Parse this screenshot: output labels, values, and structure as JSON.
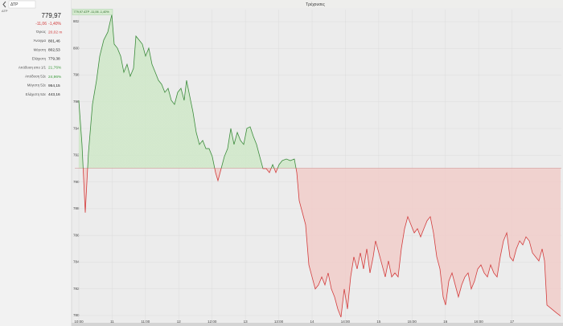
{
  "sidebar": {
    "query": "ΔΤΡ",
    "symbol": "ΔΤΡ",
    "price": "779,97",
    "change": "-11,06",
    "change_pct": "-1,40%",
    "stats": [
      {
        "label": "Όγκος",
        "value": "20,02 m",
        "color": "#d23c3c"
      },
      {
        "label": "Άνοιγμα",
        "value": "801,46"
      },
      {
        "label": "Μέγιστη",
        "value": "802,53"
      },
      {
        "label": "Ελάχιστη",
        "value": "779,38"
      },
      {
        "label": "Απόδοση απο 1/1",
        "value": "21,76%",
        "color": "#3a9a3a"
      },
      {
        "label": "Απόδοση 52ε",
        "value": "24,96%",
        "color": "#3a9a3a"
      },
      {
        "label": "Μέγιστη 52ε",
        "value": "954,15"
      },
      {
        "label": "Ελάχιστη 52ε",
        "value": "443,16"
      }
    ]
  },
  "chart_data": {
    "type": "line",
    "title": "Τρέχουσες",
    "legend_label": "779,97 ΔΤΡ -11,06 -1,40%",
    "reference": 791.03,
    "color_up": "#3c8c3c",
    "color_down": "#d23c3c",
    "fill_up": "#cfe8c8",
    "fill_down": "#f1cdca",
    "grid": true,
    "x": [
      10.0,
      10.048,
      10.097,
      10.145,
      10.205,
      10.266,
      10.314,
      10.374,
      10.435,
      10.495,
      10.531,
      10.579,
      10.628,
      10.676,
      10.724,
      10.772,
      10.821,
      10.857,
      10.905,
      10.953,
      11.002,
      11.05,
      11.098,
      11.147,
      11.195,
      11.243,
      11.291,
      11.34,
      11.388,
      11.436,
      11.484,
      11.533,
      11.581,
      11.617,
      11.665,
      11.714,
      11.762,
      11.81,
      11.859,
      11.907,
      11.955,
      12.003,
      12.052,
      12.088,
      12.136,
      12.184,
      12.233,
      12.281,
      12.329,
      12.378,
      12.426,
      12.474,
      12.522,
      12.571,
      12.619,
      12.667,
      12.715,
      12.764,
      12.812,
      12.86,
      12.909,
      12.957,
      13.005,
      13.053,
      13.114,
      13.174,
      13.234,
      13.271,
      13.307,
      13.355,
      13.403,
      13.452,
      13.5,
      13.548,
      13.596,
      13.645,
      13.693,
      13.741,
      13.79,
      13.838,
      13.886,
      13.934,
      13.983,
      14.031,
      14.079,
      14.127,
      14.176,
      14.224,
      14.272,
      14.321,
      14.369,
      14.417,
      14.453,
      14.502,
      14.55,
      14.598,
      14.646,
      14.695,
      14.743,
      14.791,
      14.839,
      14.888,
      14.936,
      14.984,
      15.033,
      15.081,
      15.129,
      15.177,
      15.226,
      15.274,
      15.322,
      15.371,
      15.419,
      15.467,
      15.503,
      15.552,
      15.6,
      15.648,
      15.696,
      15.745,
      15.793,
      15.841,
      15.889,
      15.938,
      15.986,
      16.034,
      16.083,
      16.131,
      16.179,
      16.227,
      16.276,
      16.324,
      16.372,
      16.421,
      16.469,
      16.517,
      16.565,
      16.614,
      16.662,
      16.71,
      16.759,
      16.807,
      16.855,
      16.903,
      16.952,
      16.988,
      17.024,
      17.096,
      17.169,
      17.229
    ],
    "values": [
      796.11,
      792.81,
      787.7,
      792.2,
      795.81,
      797.61,
      799.42,
      800.62,
      801.22,
      802.53,
      800.32,
      800.02,
      799.42,
      798.21,
      798.81,
      797.91,
      798.51,
      800.92,
      800.62,
      800.32,
      799.42,
      800.02,
      798.81,
      798.21,
      797.61,
      797.31,
      796.71,
      797.01,
      796.11,
      795.81,
      796.71,
      797.01,
      796.11,
      797.61,
      796.41,
      795.21,
      793.71,
      792.81,
      793.11,
      792.5,
      792.5,
      791.9,
      790.7,
      790.1,
      791.0,
      791.9,
      792.5,
      794.01,
      792.81,
      793.71,
      793.11,
      792.81,
      794.01,
      794.13,
      793.41,
      792.81,
      791.9,
      791.0,
      791.0,
      790.7,
      791.3,
      790.7,
      791.3,
      791.6,
      791.72,
      791.6,
      791.72,
      790.7,
      788.6,
      787.7,
      786.8,
      783.79,
      782.89,
      781.99,
      782.29,
      782.89,
      782.29,
      783.19,
      781.99,
      781.39,
      780.49,
      779.88,
      781.99,
      780.49,
      782.89,
      784.39,
      783.49,
      784.69,
      783.49,
      784.99,
      783.19,
      784.39,
      785.59,
      784.69,
      783.79,
      782.89,
      784.09,
      782.89,
      783.19,
      782.89,
      784.99,
      786.5,
      787.4,
      786.8,
      786.19,
      786.5,
      785.89,
      786.5,
      787.1,
      787.4,
      786.19,
      784.39,
      783.49,
      781.39,
      780.79,
      782.59,
      783.19,
      782.29,
      781.39,
      782.29,
      782.89,
      783.19,
      781.99,
      782.59,
      783.49,
      783.79,
      783.19,
      782.89,
      783.79,
      783.19,
      782.89,
      784.39,
      785.59,
      786.19,
      784.39,
      784.09,
      784.99,
      785.59,
      785.29,
      785.89,
      785.59,
      784.69,
      784.39,
      784.09,
      784.99,
      784.09,
      780.79,
      780.49,
      780.19,
      779.97
    ],
    "xlim": [
      9.94,
      17.241
    ],
    "ylim": [
      779.58,
      802.9
    ],
    "xticks": [
      {
        "value": 10,
        "label": "10:00"
      },
      {
        "value": 10.5,
        "label": "11"
      },
      {
        "value": 11,
        "label": "11:00"
      },
      {
        "value": 11.5,
        "label": "12"
      },
      {
        "value": 12,
        "label": "12:00"
      },
      {
        "value": 12.5,
        "label": "13"
      },
      {
        "value": 13,
        "label": "13:00"
      },
      {
        "value": 13.5,
        "label": "14"
      },
      {
        "value": 14,
        "label": "14:00"
      },
      {
        "value": 14.5,
        "label": "15"
      },
      {
        "value": 15,
        "label": "15:00"
      },
      {
        "value": 15.5,
        "label": "16"
      },
      {
        "value": 16,
        "label": "16:00"
      },
      {
        "value": 16.5,
        "label": "17"
      }
    ],
    "yticks": [
      802,
      800,
      798,
      796,
      794,
      792,
      790,
      788,
      786,
      784,
      782,
      780
    ]
  }
}
